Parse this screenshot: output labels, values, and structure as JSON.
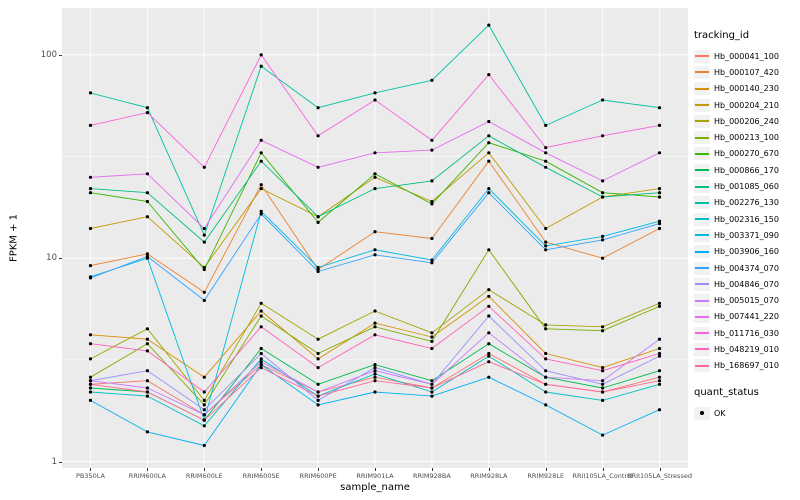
{
  "chart_data": {
    "type": "line",
    "title": "",
    "xlabel": "sample_name",
    "ylabel": "FPKM + 1",
    "y_scale": "log10",
    "ylim": [
      0.93,
      170
    ],
    "y_ticks": [
      1,
      10,
      100
    ],
    "y_tick_labels": [
      "1",
      "10",
      "100"
    ],
    "y_minor": [
      3.162,
      31.623
    ],
    "grid": true,
    "legend_position": "right",
    "point_color": "#000000",
    "panel_bg": "#EBEBEB",
    "grid_color": "#FFFFFF",
    "categories": [
      "PB350LA",
      "RRIM600LA",
      "RRIM600LE",
      "RRIM600SE",
      "RRIM600PE",
      "RRIM901LA",
      "RRIM928BA",
      "RRIM928LA",
      "RRIM928LE",
      "RRII105LA_Control",
      "RRII105LA_Stressed"
    ],
    "series": [
      {
        "name": "Hb_000041_100",
        "color": "#F8766D",
        "values": [
          2.4,
          2.5,
          1.7,
          3.0,
          2.2,
          2.6,
          2.3,
          3.4,
          2.4,
          2.2,
          2.6
        ]
      },
      {
        "name": "Hb_000107_420",
        "color": "#EA8331",
        "values": [
          9.2,
          10.5,
          6.8,
          23,
          8.8,
          13.5,
          12.5,
          30,
          12,
          10,
          14
        ]
      },
      {
        "name": "Hb_000140_230",
        "color": "#D89000",
        "values": [
          4.2,
          4.0,
          2.6,
          5.5,
          3.2,
          4.8,
          4.1,
          6.5,
          3.4,
          2.9,
          3.6
        ]
      },
      {
        "name": "Hb_000204_210",
        "color": "#C09B00",
        "values": [
          14,
          16,
          9,
          22,
          16,
          25,
          19,
          33,
          14,
          20,
          22
        ]
      },
      {
        "name": "Hb_000206_240",
        "color": "#A3A500",
        "values": [
          3.2,
          4.5,
          2.0,
          6.0,
          4.0,
          5.5,
          4.3,
          7.0,
          4.7,
          4.6,
          6.0
        ]
      },
      {
        "name": "Hb_000213_100",
        "color": "#7CAE00",
        "values": [
          2.6,
          3.8,
          1.9,
          5.2,
          3.4,
          4.6,
          3.9,
          11,
          4.5,
          4.4,
          5.8
        ]
      },
      {
        "name": "Hb_000270_670",
        "color": "#39B600",
        "values": [
          21,
          19,
          8.8,
          33,
          15,
          26,
          18.5,
          37,
          30,
          21,
          20
        ]
      },
      {
        "name": "Hb_000866_170",
        "color": "#00BB4E",
        "values": [
          2.3,
          2.2,
          1.6,
          3.6,
          2.4,
          3.0,
          2.5,
          3.8,
          2.6,
          2.3,
          2.8
        ]
      },
      {
        "name": "Hb_001085_060",
        "color": "#00BF7D",
        "values": [
          22,
          21,
          12,
          30,
          16,
          22,
          24,
          40,
          28,
          20,
          21
        ]
      },
      {
        "name": "Hb_002276_130",
        "color": "#00C1A3",
        "values": [
          65,
          55,
          13,
          88,
          55,
          65,
          75,
          140,
          45,
          60,
          55
        ]
      },
      {
        "name": "Hb_002316_150",
        "color": "#00BFC4",
        "values": [
          2.2,
          2.1,
          1.5,
          3.2,
          2.1,
          2.7,
          2.2,
          3.3,
          2.2,
          2.0,
          2.4
        ]
      },
      {
        "name": "Hb_003371_090",
        "color": "#00BAE0",
        "values": [
          8.1,
          10.0,
          1.6,
          17,
          9.0,
          11,
          9.8,
          22,
          11.5,
          12.8,
          15.2
        ]
      },
      {
        "name": "Hb_003906_160",
        "color": "#00B0F6",
        "values": [
          2.0,
          1.4,
          1.2,
          3.0,
          1.9,
          2.2,
          2.1,
          2.6,
          1.9,
          1.35,
          1.8
        ]
      },
      {
        "name": "Hb_004374_070",
        "color": "#35A2FF",
        "values": [
          8.0,
          10.2,
          6.2,
          16.5,
          8.6,
          10.4,
          9.5,
          21,
          11,
          12.3,
          14.8
        ]
      },
      {
        "name": "Hb_004846_070",
        "color": "#9590FF",
        "values": [
          2.5,
          2.8,
          1.8,
          3.4,
          2.0,
          2.9,
          2.4,
          5.2,
          2.8,
          2.4,
          3.3
        ]
      },
      {
        "name": "Hb_005015_070",
        "color": "#C77CFF",
        "values": [
          2.5,
          2.3,
          1.7,
          3.1,
          2.2,
          2.8,
          2.4,
          4.3,
          2.6,
          2.5,
          4.0
        ]
      },
      {
        "name": "Hb_007441_220",
        "color": "#E76BF3",
        "values": [
          25,
          26,
          14,
          38,
          28,
          33,
          34,
          47,
          33,
          24,
          33
        ]
      },
      {
        "name": "Hb_011716_030",
        "color": "#FA62DB",
        "values": [
          45,
          52,
          28,
          100,
          40,
          60,
          38,
          80,
          35,
          40,
          45
        ]
      },
      {
        "name": "Hb_048219_010",
        "color": "#FF62BC",
        "values": [
          3.8,
          3.5,
          2.2,
          4.6,
          2.9,
          4.2,
          3.6,
          5.8,
          3.2,
          2.8,
          3.4
        ]
      },
      {
        "name": "Hb_168697_010",
        "color": "#FF6A98",
        "values": [
          2.4,
          2.2,
          1.6,
          2.9,
          2.1,
          2.5,
          2.3,
          3.1,
          2.4,
          2.2,
          2.5
        ]
      }
    ]
  },
  "legend": {
    "tracking_title": "tracking_id",
    "quant_title": "quant_status",
    "quant_items": [
      "OK"
    ]
  }
}
